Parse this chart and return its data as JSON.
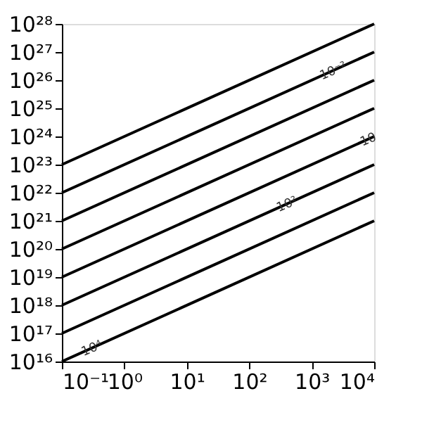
{
  "chart_data": {
    "type": "line",
    "log": "xy",
    "grid": false,
    "legend": false,
    "marker": "none",
    "line_style": "solid",
    "x": [
      0.1,
      10000
    ],
    "series": [
      {
        "color": "#000000",
        "values": [
          1e+23,
          1e+28
        ]
      },
      {
        "color": "#000000",
        "values": [
          1e+22,
          1e+27
        ]
      },
      {
        "color": "#000000",
        "values": [
          1e+21,
          1e+26
        ]
      },
      {
        "color": "#000000",
        "values": [
          1e+20,
          1e+25
        ]
      },
      {
        "color": "#000000",
        "values": [
          1e+19,
          1e+24
        ]
      },
      {
        "color": "#000000",
        "values": [
          1e+18,
          1e+23
        ]
      },
      {
        "color": "#000000",
        "values": [
          1e+17,
          1e+22
        ]
      },
      {
        "color": "#000000",
        "values": [
          1e+16,
          1e+21
        ]
      }
    ],
    "xlim": [
      0.1,
      10000
    ],
    "xticks": [
      {
        "value": 0.1,
        "label": "10⁻¹"
      },
      {
        "value": 1,
        "label": "10⁰"
      },
      {
        "value": 10,
        "label": "10¹"
      },
      {
        "value": 100,
        "label": "10²"
      },
      {
        "value": 1000,
        "label": "10³"
      },
      {
        "value": 10000,
        "label": "10⁴"
      }
    ],
    "ylim": [
      1e+16,
      1e+28
    ],
    "yticks": [
      {
        "value": 1e+16,
        "label": "10¹⁶"
      },
      {
        "value": 1e+17,
        "label": "10¹⁷"
      },
      {
        "value": 1e+18,
        "label": "10¹⁸"
      },
      {
        "value": 1e+19,
        "label": "10¹⁹"
      },
      {
        "value": 1e+20,
        "label": "10²⁰"
      },
      {
        "value": 1e+21,
        "label": "10²¹"
      },
      {
        "value": 1e+22,
        "label": "10²²"
      },
      {
        "value": 1e+23,
        "label": "10²³"
      },
      {
        "value": 1e+24,
        "label": "10²⁴"
      },
      {
        "value": 1e+25,
        "label": "10²⁵"
      },
      {
        "value": 1e+26,
        "label": "10²⁶"
      },
      {
        "value": 1e+27,
        "label": "10²⁷"
      },
      {
        "value": 1e+28,
        "label": "10²⁸"
      }
    ],
    "annotations": [
      {
        "text": "10⁻²",
        "x": 2200,
        "y": 2.2e+26
      },
      {
        "text": "10",
        "x": 8000,
        "y": 8e+23
      },
      {
        "text": "10²",
        "x": 400,
        "y": 4e+21
      },
      {
        "text": "10⁴",
        "x": 0.3,
        "y": 3e+16
      }
    ]
  }
}
